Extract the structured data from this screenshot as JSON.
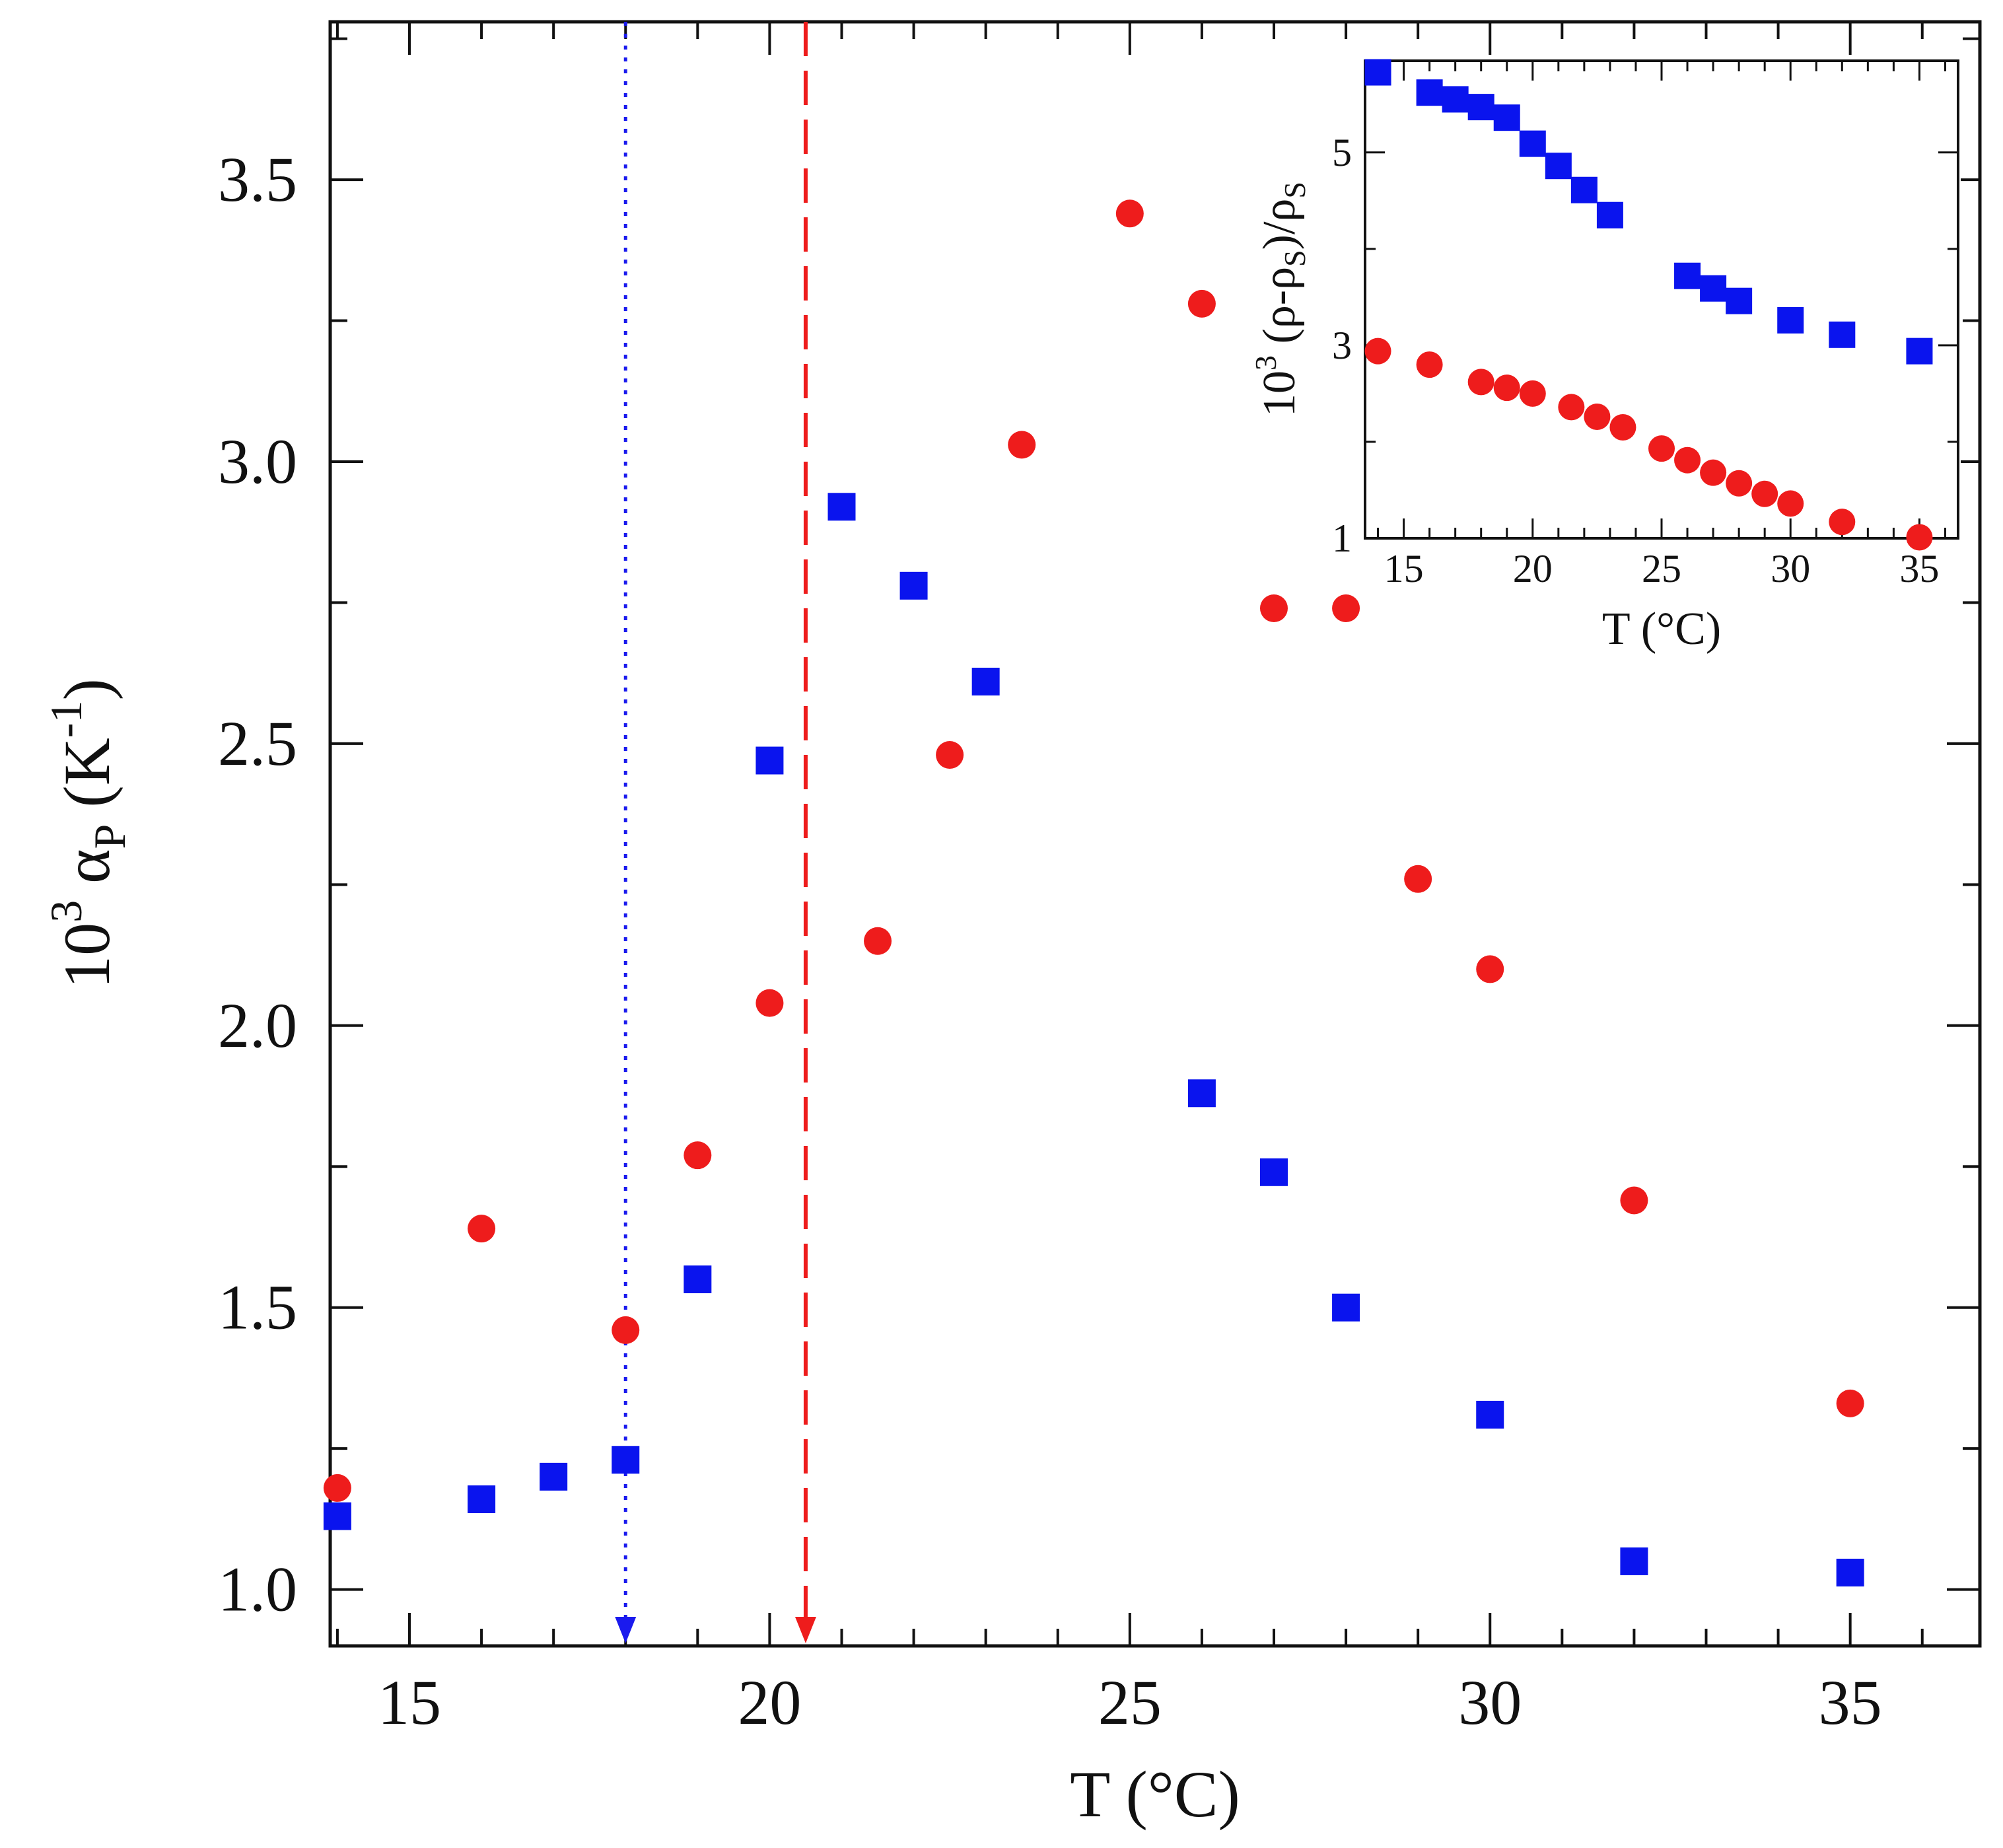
{
  "chart_data": [
    {
      "id": "main",
      "type": "scatter",
      "xlabel": "T (°C)",
      "ylabel": {
        "prefix": "10",
        "prefix_sup": "3",
        "symbol": "α",
        "symbol_sub": "P",
        "unit": "(K",
        "unit_sup": "-1",
        "unit_close": ")"
      },
      "xlim": [
        13.9,
        36.8
      ],
      "ylim": [
        0.9,
        3.78
      ],
      "xticks": [
        15,
        20,
        25,
        30,
        35
      ],
      "xtick_labels": [
        "15",
        "20",
        "25",
        "30",
        "35"
      ],
      "yticks": [
        1.0,
        1.5,
        2.0,
        2.5,
        3.0,
        3.5
      ],
      "ytick_labels": [
        "1.0",
        "1.5",
        "2.0",
        "2.5",
        "3.0",
        "3.5"
      ],
      "series": [
        {
          "name": "circles",
          "marker": "circle",
          "color": "#ee1c1c",
          "points": [
            [
              14,
              1.18
            ],
            [
              16,
              1.64
            ],
            [
              18,
              1.46
            ],
            [
              19,
              1.77
            ],
            [
              20,
              2.04
            ],
            [
              21.5,
              2.15
            ],
            [
              22.5,
              2.48
            ],
            [
              23.5,
              3.03
            ],
            [
              25,
              3.44
            ],
            [
              26,
              3.28
            ],
            [
              27,
              2.74
            ],
            [
              28,
              2.74
            ],
            [
              29,
              2.26
            ],
            [
              30,
              2.1
            ],
            [
              32,
              1.69
            ],
            [
              35,
              1.33
            ]
          ]
        },
        {
          "name": "squares",
          "marker": "square",
          "color": "#0a14ee",
          "points": [
            [
              14,
              1.13
            ],
            [
              16,
              1.16
            ],
            [
              17,
              1.2
            ],
            [
              18,
              1.23
            ],
            [
              19,
              1.55
            ],
            [
              20,
              2.47
            ],
            [
              21,
              2.92
            ],
            [
              22,
              2.78
            ],
            [
              23,
              2.61
            ],
            [
              26,
              1.88
            ],
            [
              27,
              1.74
            ],
            [
              28,
              1.5
            ],
            [
              30,
              1.31
            ],
            [
              32,
              1.05
            ],
            [
              35,
              1.03
            ]
          ]
        }
      ],
      "markers": [
        {
          "name": "dotted-arrow",
          "x": 18.0,
          "color": "#1a1aee",
          "style": "dotted"
        },
        {
          "name": "dashed-arrow",
          "x": 20.5,
          "color": "#ee1c1c",
          "style": "dashed"
        }
      ]
    },
    {
      "id": "inset",
      "type": "scatter",
      "xlabel": "T (°C)",
      "ylabel": {
        "prefix": "10",
        "prefix_sup": "3",
        "expr1": " (ρ-ρ",
        "expr1_sub": "S",
        "expr2": ")/ρ",
        "expr2_sub": "S"
      },
      "xlim": [
        13.5,
        36.5
      ],
      "ylim": [
        1,
        5.95
      ],
      "xticks": [
        15,
        20,
        25,
        30,
        35
      ],
      "xtick_labels": [
        "15",
        "20",
        "25",
        "30",
        "35"
      ],
      "yticks": [
        1,
        3,
        5
      ],
      "ytick_labels": [
        "1",
        "3",
        "5"
      ],
      "series": [
        {
          "name": "circles",
          "marker": "circle",
          "color": "#ee1c1c",
          "points": [
            [
              14,
              2.94
            ],
            [
              16,
              2.8
            ],
            [
              18,
              2.62
            ],
            [
              19,
              2.56
            ],
            [
              20,
              2.5
            ],
            [
              21.5,
              2.36
            ],
            [
              22.5,
              2.26
            ],
            [
              23.5,
              2.15
            ],
            [
              25,
              1.93
            ],
            [
              26,
              1.81
            ],
            [
              27,
              1.68
            ],
            [
              28,
              1.57
            ],
            [
              29,
              1.46
            ],
            [
              30,
              1.36
            ],
            [
              32,
              1.17
            ],
            [
              35,
              1.01
            ]
          ]
        },
        {
          "name": "squares",
          "marker": "square",
          "color": "#0a14ee",
          "points": [
            [
              14,
              5.83
            ],
            [
              16,
              5.62
            ],
            [
              17,
              5.55
            ],
            [
              18,
              5.47
            ],
            [
              19,
              5.36
            ],
            [
              20,
              5.09
            ],
            [
              21,
              4.86
            ],
            [
              22,
              4.61
            ],
            [
              23,
              4.35
            ],
            [
              26,
              3.72
            ],
            [
              27,
              3.59
            ],
            [
              28,
              3.46
            ],
            [
              30,
              3.26
            ],
            [
              32,
              3.11
            ],
            [
              35,
              2.94
            ]
          ]
        }
      ]
    }
  ]
}
